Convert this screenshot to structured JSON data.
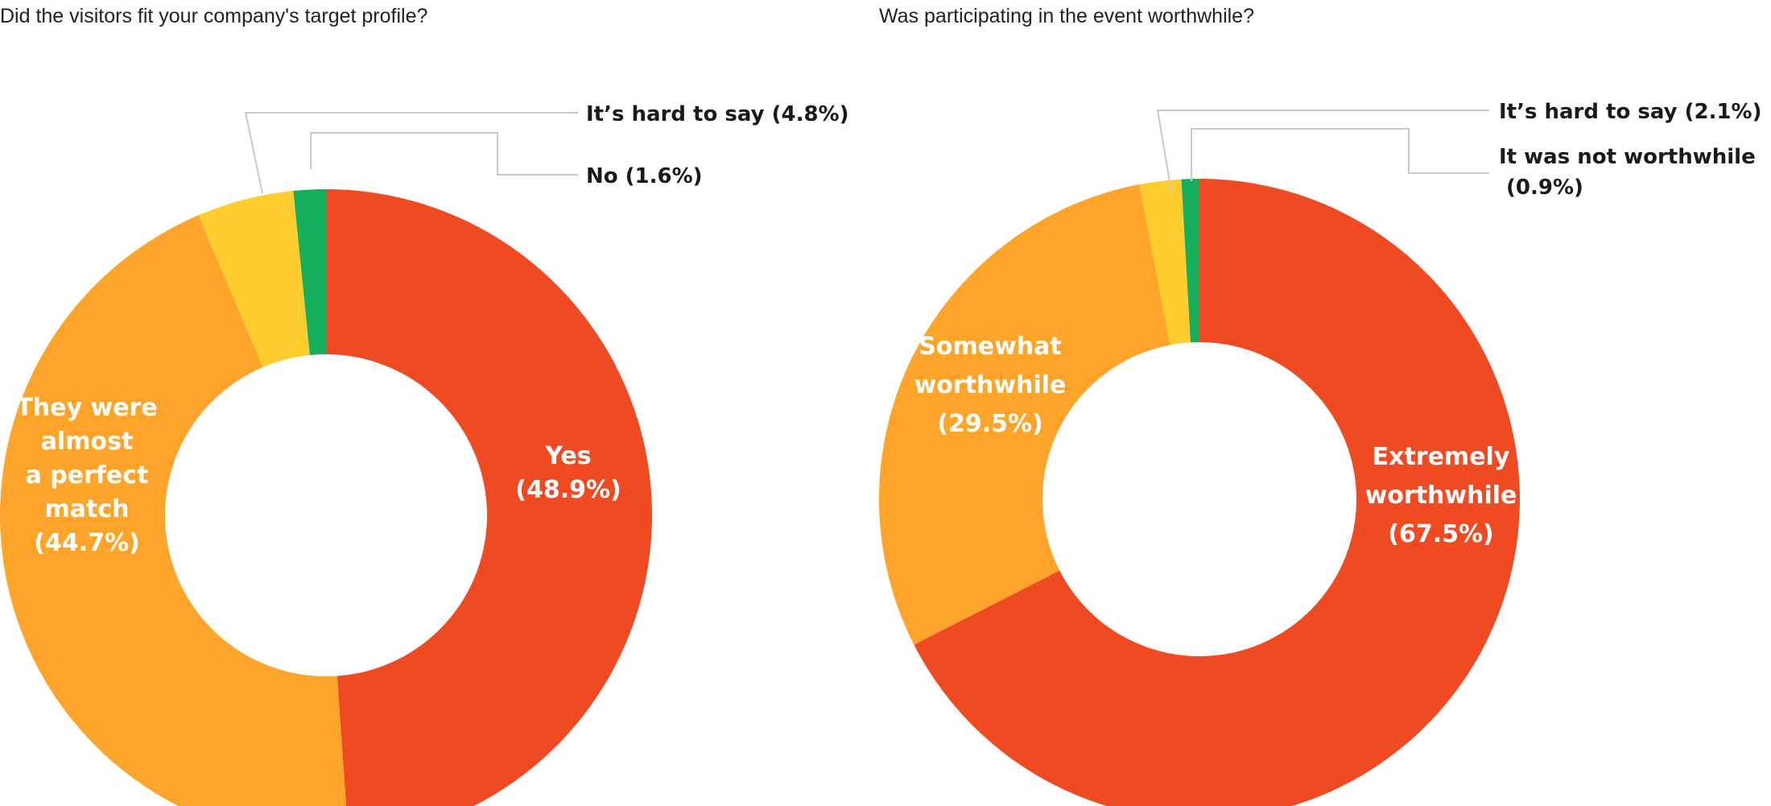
{
  "chart_data": [
    {
      "type": "pie",
      "donut": true,
      "title": "Did the visitors fit your company's target profile?",
      "slices": [
        {
          "label_lines": [
            "Yes",
            "(48.9%)"
          ],
          "value": 48.9,
          "color": "#F04A23",
          "label_position": "inside"
        },
        {
          "label_lines": [
            "They were",
            "almost",
            "a perfect",
            "match",
            "(44.7%)"
          ],
          "value": 44.7,
          "color": "#FDA42A",
          "label_position": "inside"
        },
        {
          "label_lines": [
            "It’s hard to say (4.8%)"
          ],
          "value": 4.8,
          "color": "#FECC2C",
          "label_position": "outside"
        },
        {
          "label_lines": [
            "No (1.6%)"
          ],
          "value": 1.6,
          "color": "#14AE5C",
          "label_position": "outside"
        }
      ]
    },
    {
      "type": "pie",
      "donut": true,
      "title": "Was participating in the event worthwhile?",
      "slices": [
        {
          "label_lines": [
            "Extremely",
            "worthwhile",
            "(67.5%)"
          ],
          "value": 67.5,
          "color": "#F04A23",
          "label_position": "inside"
        },
        {
          "label_lines": [
            "Somewhat",
            "worthwhile",
            "(29.5%)"
          ],
          "value": 29.5,
          "color": "#FDA42A",
          "label_position": "inside"
        },
        {
          "label_lines": [
            "It’s hard to say (2.1%)"
          ],
          "value": 2.1,
          "color": "#FECC2C",
          "label_position": "outside"
        },
        {
          "label_lines": [
            "It was not worthwhile",
            " (0.9%)"
          ],
          "value": 0.9,
          "color": "#14AE5C",
          "label_position": "outside"
        }
      ]
    }
  ]
}
